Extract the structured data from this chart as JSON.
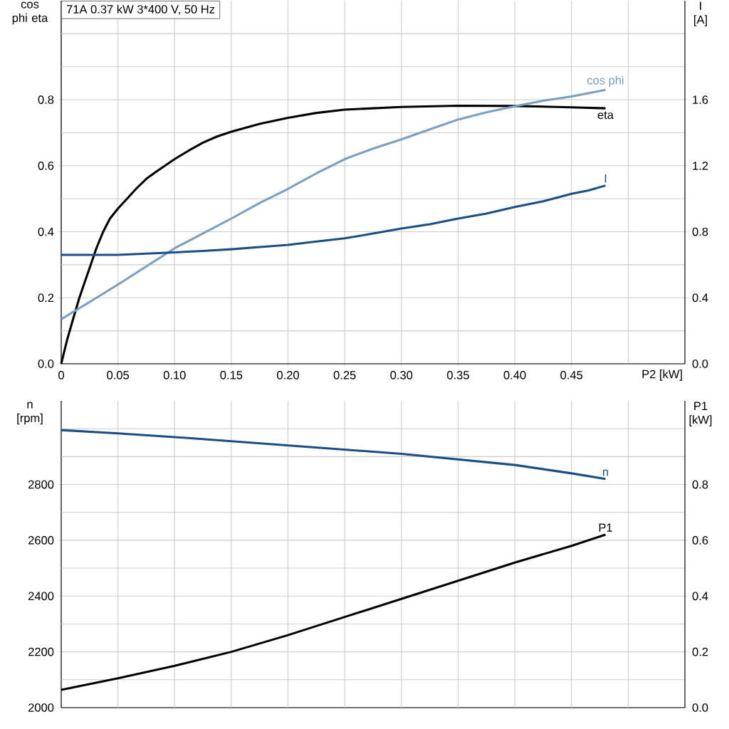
{
  "chart_data": [
    {
      "type": "line",
      "title": "71A   0.37 kW   3*400 V, 50 Hz",
      "xlabel": "P2 [kW]",
      "ylabel": "cos phi eta",
      "y2label": "I [A]",
      "grid": true,
      "xlim": [
        0,
        0.55
      ],
      "xticks": [
        {
          "value": 0,
          "label": "0"
        },
        {
          "value": 0.05,
          "label": "0.05"
        },
        {
          "value": 0.1,
          "label": "0.10"
        },
        {
          "value": 0.15,
          "label": "0.15"
        },
        {
          "value": 0.2,
          "label": "0.20"
        },
        {
          "value": 0.25,
          "label": "0.25"
        },
        {
          "value": 0.3,
          "label": "0.30"
        },
        {
          "value": 0.35,
          "label": "0.35"
        },
        {
          "value": 0.4,
          "label": "0.40"
        },
        {
          "value": 0.45,
          "label": "0.45"
        },
        {
          "value": 0.5,
          "label": null
        }
      ],
      "ylim": [
        0,
        1.1
      ],
      "yticks": [
        {
          "value": 0,
          "label": "0.0"
        },
        {
          "value": 0.2,
          "label": "0.2"
        },
        {
          "value": 0.4,
          "label": "0.4"
        },
        {
          "value": 0.6,
          "label": "0.6"
        },
        {
          "value": 0.8,
          "label": "0.8"
        },
        {
          "value": 0.1,
          "label": null
        },
        {
          "value": 0.3,
          "label": null
        },
        {
          "value": 0.5,
          "label": null
        },
        {
          "value": 0.7,
          "label": null
        },
        {
          "value": 0.9,
          "label": null
        },
        {
          "value": 1.0,
          "label": null
        }
      ],
      "y2lim": [
        0,
        2.2
      ],
      "y2ticks": [
        {
          "value": 0,
          "label": "0.0"
        },
        {
          "value": 0.4,
          "label": "0.4"
        },
        {
          "value": 0.8,
          "label": "0.8"
        },
        {
          "value": 1.2,
          "label": "1.2"
        },
        {
          "value": 1.6,
          "label": "1.6"
        }
      ],
      "series": [
        {
          "name": "eta",
          "color": "#000000",
          "x": [
            0,
            0.005,
            0.01,
            0.016,
            0.021,
            0.026,
            0.031,
            0.037,
            0.043,
            0.05,
            0.058,
            0.066,
            0.075,
            0.083,
            0.0915,
            0.1,
            0.112,
            0.125,
            0.137,
            0.15,
            0.175,
            0.2,
            0.225,
            0.25,
            0.3,
            0.35,
            0.4,
            0.45,
            0.48
          ],
          "values": [
            0,
            0.07,
            0.13,
            0.2,
            0.25,
            0.3,
            0.35,
            0.4,
            0.44,
            0.47,
            0.5,
            0.53,
            0.56,
            0.58,
            0.6,
            0.62,
            0.645,
            0.67,
            0.688,
            0.703,
            0.727,
            0.745,
            0.76,
            0.77,
            0.778,
            0.782,
            0.781,
            0.777,
            0.774
          ]
        },
        {
          "name": "cos phi",
          "color": "#7a9fc0",
          "x": [
            0,
            0.025,
            0.05,
            0.075,
            0.1,
            0.125,
            0.15,
            0.175,
            0.2,
            0.225,
            0.25,
            0.275,
            0.3,
            0.325,
            0.35,
            0.375,
            0.4,
            0.425,
            0.45,
            0.48
          ],
          "values": [
            0.135,
            0.187,
            0.24,
            0.295,
            0.35,
            0.395,
            0.44,
            0.487,
            0.53,
            0.577,
            0.62,
            0.652,
            0.68,
            0.71,
            0.74,
            0.762,
            0.78,
            0.797,
            0.81,
            0.83
          ]
        },
        {
          "name": "I",
          "color": "#1a4f85",
          "axis": "y2",
          "x": [
            0,
            0.05,
            0.1,
            0.125,
            0.15,
            0.175,
            0.2,
            0.225,
            0.25,
            0.275,
            0.3,
            0.325,
            0.35,
            0.375,
            0.4,
            0.425,
            0.45,
            0.465,
            0.48
          ],
          "values": [
            0.66,
            0.66,
            0.675,
            0.684,
            0.694,
            0.707,
            0.72,
            0.741,
            0.76,
            0.789,
            0.82,
            0.845,
            0.88,
            0.91,
            0.95,
            0.985,
            1.03,
            1.05,
            1.08
          ]
        }
      ]
    },
    {
      "type": "line",
      "ylabel": "n [rpm]",
      "y2label": "P1 [kW]",
      "grid": true,
      "tick_labels": "y",
      "xlim": [
        0,
        0.55
      ],
      "xticks": [
        {
          "value": 0.05,
          "label": null
        },
        {
          "value": 0.1,
          "label": null
        },
        {
          "value": 0.15,
          "label": null
        },
        {
          "value": 0.2,
          "label": null
        },
        {
          "value": 0.25,
          "label": null
        },
        {
          "value": 0.3,
          "label": null
        },
        {
          "value": 0.35,
          "label": null
        },
        {
          "value": 0.4,
          "label": null
        },
        {
          "value": 0.45,
          "label": null
        },
        {
          "value": 0.5,
          "label": null
        }
      ],
      "ylim": [
        2000,
        3100
      ],
      "yticks": [
        {
          "value": 2000,
          "label": "2000"
        },
        {
          "value": 2200,
          "label": "2200"
        },
        {
          "value": 2400,
          "label": "2400"
        },
        {
          "value": 2600,
          "label": "2600"
        },
        {
          "value": 2800,
          "label": "2800"
        },
        {
          "value": 2100,
          "label": null
        },
        {
          "value": 2300,
          "label": null
        },
        {
          "value": 2500,
          "label": null
        },
        {
          "value": 2700,
          "label": null
        },
        {
          "value": 2900,
          "label": null
        },
        {
          "value": 3000,
          "label": null
        }
      ],
      "y2lim": [
        0,
        1.1
      ],
      "y2ticks": [
        {
          "value": 0,
          "label": "0.0"
        },
        {
          "value": 0.2,
          "label": "0.2"
        },
        {
          "value": 0.4,
          "label": "0.4"
        },
        {
          "value": 0.6,
          "label": "0.6"
        },
        {
          "value": 0.8,
          "label": "0.8"
        }
      ],
      "series": [
        {
          "name": "n",
          "color": "#1a4f85",
          "x": [
            0,
            0.05,
            0.1,
            0.15,
            0.2,
            0.25,
            0.3,
            0.35,
            0.4,
            0.45,
            0.48
          ],
          "values": [
            2995,
            2983,
            2970,
            2955,
            2940,
            2925,
            2910,
            2890,
            2870,
            2840,
            2820
          ]
        },
        {
          "name": "P1",
          "color": "#000000",
          "axis": "y2",
          "x": [
            0,
            0.05,
            0.1,
            0.15,
            0.2,
            0.25,
            0.3,
            0.35,
            0.4,
            0.45,
            0.48
          ],
          "values": [
            0.064,
            0.105,
            0.15,
            0.2,
            0.26,
            0.325,
            0.39,
            0.455,
            0.52,
            0.58,
            0.62
          ]
        }
      ]
    }
  ]
}
